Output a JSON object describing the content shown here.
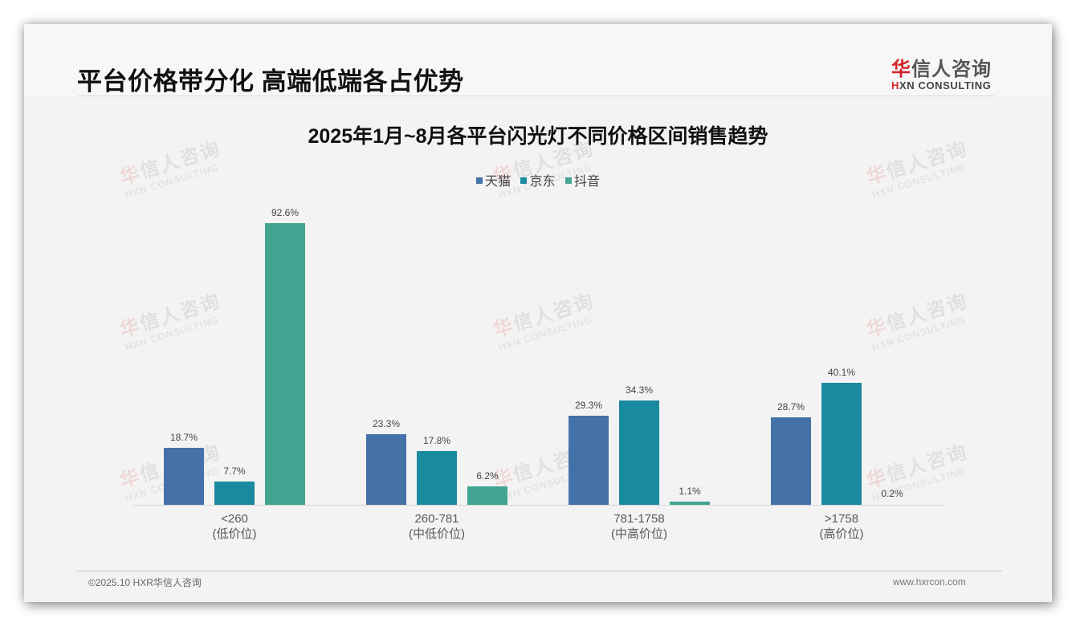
{
  "header": {
    "title": "平台价格带分化 高端低端各占优势",
    "logo": {
      "cn_red": "华",
      "cn_rest": "信人咨询",
      "en_red": "H",
      "en_rest": "XN CONSULTING"
    }
  },
  "watermark": {
    "cn_red": "华",
    "cn_rest": "信人咨询",
    "en": "HXN CONSULTING"
  },
  "footer": {
    "copyright": "©2025.10 HXR华信人咨询",
    "website": "www.hxrcon.com"
  },
  "colors": {
    "tmall": "#4472a8",
    "jd": "#1a8aa0",
    "douyin": "#42a592"
  },
  "chart_data": {
    "type": "bar",
    "title": "2025年1月~8月各平台闪光灯不同价格区间销售趋势",
    "xlabel": "",
    "ylabel": "",
    "legend_position": "top",
    "grid": false,
    "categories": [
      "<260\n(低价位)",
      "260-781\n(中低价位)",
      "781-1758\n(中高价位)",
      ">1758\n(高价位)"
    ],
    "category_lines": [
      [
        "<260",
        "(低价位)"
      ],
      [
        "260-781",
        "(中低价位)"
      ],
      [
        "781-1758",
        "(中高价位)"
      ],
      [
        ">1758",
        "(高价位)"
      ]
    ],
    "series": [
      {
        "name": "天猫",
        "color": "#4472a8",
        "values": [
          18.7,
          23.3,
          29.3,
          28.7
        ],
        "labels": [
          "18.7%",
          "23.3%",
          "29.3%",
          "28.7%"
        ]
      },
      {
        "name": "京东",
        "color": "#1a8aa0",
        "values": [
          7.7,
          17.8,
          34.3,
          40.1
        ],
        "labels": [
          "7.7%",
          "17.8%",
          "34.3%",
          "40.1%"
        ]
      },
      {
        "name": "抖音",
        "color": "#42a592",
        "values": [
          92.6,
          6.2,
          1.1,
          0.2
        ],
        "labels": [
          "92.6%",
          "6.2%",
          "1.1%",
          "0.2%"
        ]
      }
    ],
    "unit": "%",
    "ylim": [
      0,
      100
    ]
  }
}
